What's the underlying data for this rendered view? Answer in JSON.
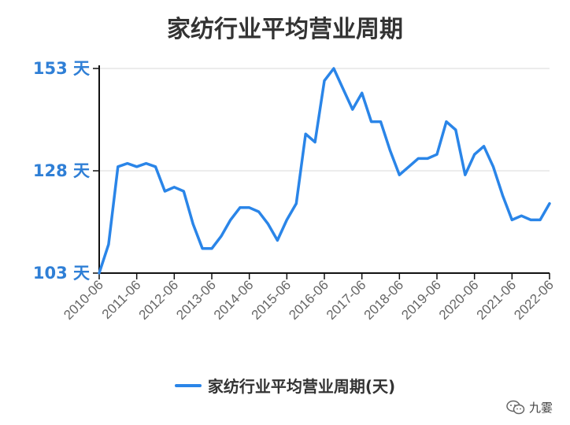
{
  "chart_data": {
    "type": "line",
    "title": "家纺行业平均营业周期",
    "ylim": [
      103,
      153
    ],
    "yticks": [
      "103 天",
      "128 天",
      "153 天"
    ],
    "ytick_values": [
      103,
      128,
      153
    ],
    "grid": "horizontal",
    "legend_position": "bottom",
    "categories": [
      "2010-06",
      "2011-06",
      "2012-06",
      "2013-06",
      "2014-06",
      "2015-06",
      "2016-06",
      "2017-06",
      "2018-06",
      "2019-06",
      "2020-06",
      "2021-06",
      "2022-06"
    ],
    "series": [
      {
        "name": "家纺行业平均营业周期(天)",
        "color": "#2a85e8",
        "x": [
          0,
          0.25,
          0.5,
          0.75,
          1,
          1.25,
          1.5,
          1.75,
          2,
          2.25,
          2.5,
          2.75,
          3,
          3.25,
          3.5,
          3.75,
          4,
          4.25,
          4.5,
          4.75,
          5,
          5.25,
          5.5,
          5.75,
          6,
          6.25,
          6.5,
          6.75,
          7,
          7.25,
          7.5,
          7.75,
          8,
          8.25,
          8.5,
          8.75,
          9,
          9.25,
          9.5,
          9.75,
          10,
          10.25,
          10.5,
          10.75,
          11,
          11.25,
          11.5,
          11.75,
          12
        ],
        "values": [
          103,
          110,
          129,
          129.8,
          129,
          129.8,
          129,
          123,
          124,
          123,
          115,
          109,
          109,
          112,
          116,
          119,
          119,
          118,
          115,
          111,
          116,
          120,
          137,
          135,
          150,
          153,
          148,
          143,
          147,
          140,
          140,
          133,
          127,
          129,
          131,
          131,
          132,
          140,
          138,
          127,
          132,
          134,
          129,
          122,
          116,
          117,
          116,
          116,
          120
        ]
      }
    ]
  },
  "legend": {
    "label": "家纺行业平均营业周期(天)"
  },
  "watermark": {
    "text": "九霎",
    "icon": "wechat-icon"
  }
}
